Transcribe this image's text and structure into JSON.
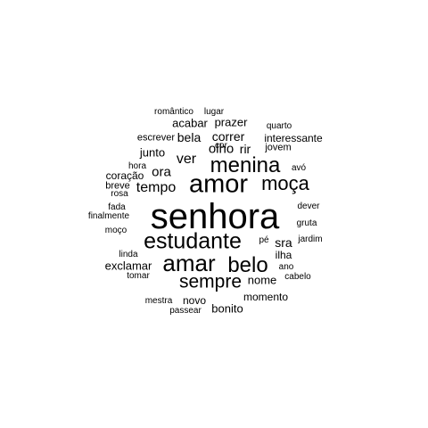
{
  "words": [
    "senhora",
    "amor",
    "estudante",
    "amar",
    "menina",
    "belo",
    "moça",
    "sempre",
    "tempo",
    "ver",
    "olho",
    "ora",
    "rir",
    "correr",
    "bela",
    "junto",
    "prazer",
    "acabar",
    "interessante",
    "jovem",
    "escrever",
    "cor",
    "romântico",
    "lugar",
    "quarto",
    "avó",
    "hora",
    "coração",
    "breve",
    "rosa",
    "fada",
    "dever",
    "finalmente",
    "gruta",
    "moço",
    "pé",
    "sra",
    "jardim",
    "ilha",
    "linda",
    "exclamar",
    "ano",
    "nome",
    "tomar",
    "cabelo",
    "momento",
    "mestra",
    "novo",
    "passear",
    "bonito"
  ],
  "text_color": "#000000",
  "background_color": "#ffffff"
}
